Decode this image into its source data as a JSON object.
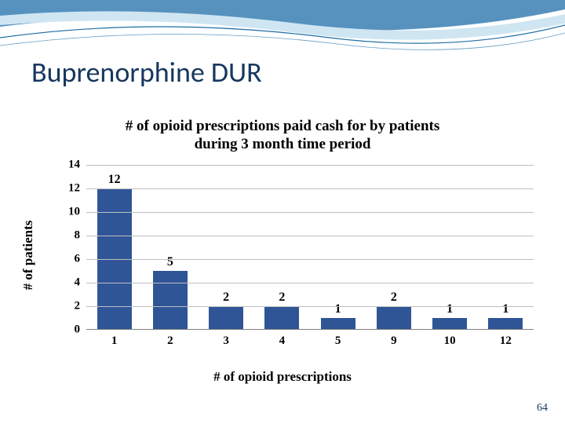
{
  "slide": {
    "title": "Buprenorphine DUR",
    "title_color": "#17375e",
    "title_fontsize": 36,
    "page_number": "64",
    "page_number_color": "#17365d",
    "swoosh_colors": {
      "top_band": "#3a7fb3",
      "mid_band": "#cfe6f2",
      "line": "#1f6ea5"
    }
  },
  "chart": {
    "type": "bar",
    "title_line1": "# of opioid prescriptions paid cash for by patients",
    "title_line2": "during 3 month time period",
    "title_fontsize": 19,
    "xlabel": "# of opioid prescriptions",
    "ylabel": "# of patients",
    "label_fontsize": 17,
    "categories": [
      "1",
      "2",
      "3",
      "4",
      "5",
      "9",
      "10",
      "12"
    ],
    "values": [
      12,
      5,
      2,
      2,
      1,
      2,
      1,
      1
    ],
    "bar_color": "#2f5597",
    "ylim": [
      0,
      14
    ],
    "ytick_step": 2,
    "yticks": [
      "0",
      "2",
      "4",
      "6",
      "8",
      "10",
      "12",
      "14"
    ],
    "grid_color": "#bfbfbf",
    "axis_color": "#808080",
    "background_color": "#ffffff",
    "tick_fontsize": 15,
    "bar_label_fontsize": 16,
    "bar_width": 0.62
  }
}
